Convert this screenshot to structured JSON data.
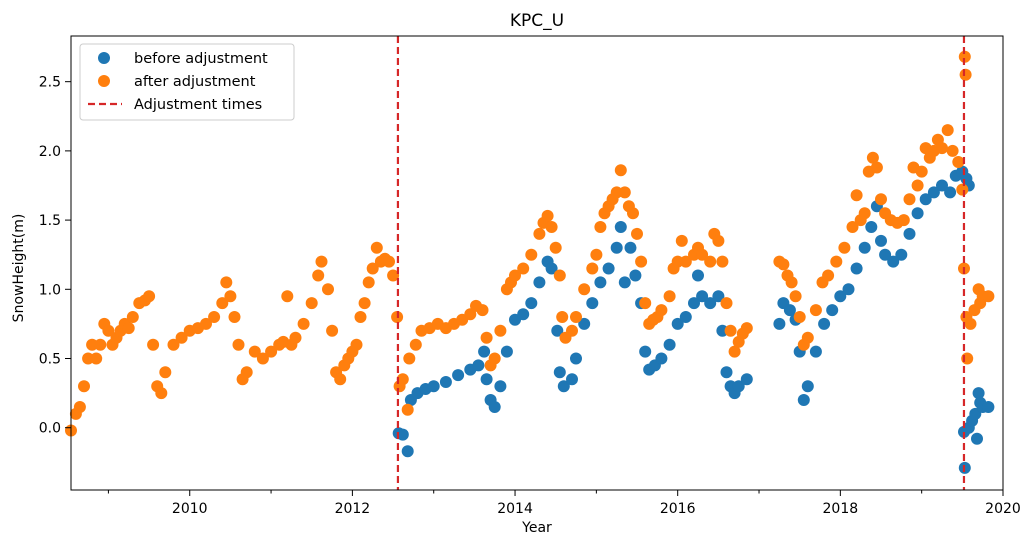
{
  "chart_data": {
    "type": "scatter",
    "title": "KPC_U",
    "xlabel": "Year",
    "ylabel": "SnowHeight(m)",
    "xlim": [
      2008.54,
      2020.0
    ],
    "ylim": [
      -0.45,
      2.83
    ],
    "x_ticks": [
      2010,
      2012,
      2014,
      2016,
      2018,
      2020
    ],
    "x_minor_ticks": [
      2009,
      2011,
      2013,
      2015,
      2017,
      2019
    ],
    "y_ticks": [
      0.0,
      0.5,
      1.0,
      1.5,
      2.0,
      2.5
    ],
    "y_tick_labels": [
      "0.0",
      "0.5",
      "1.0",
      "1.5",
      "2.0",
      "2.5"
    ],
    "legend_position": "upper-left",
    "colors": {
      "before": "#1f77b4",
      "after": "#ff7f0e",
      "adjust": "#d62728"
    },
    "series": [
      {
        "name": "before adjustment",
        "marker": "circle",
        "points": [
          [
            2012.57,
            -0.04
          ],
          [
            2012.62,
            -0.05
          ],
          [
            2012.68,
            -0.17
          ],
          [
            2012.72,
            0.2
          ],
          [
            2012.8,
            0.25
          ],
          [
            2012.9,
            0.28
          ],
          [
            2013.0,
            0.3
          ],
          [
            2013.15,
            0.33
          ],
          [
            2013.3,
            0.38
          ],
          [
            2013.45,
            0.42
          ],
          [
            2013.55,
            0.45
          ],
          [
            2013.62,
            0.55
          ],
          [
            2013.65,
            0.35
          ],
          [
            2013.7,
            0.2
          ],
          [
            2013.75,
            0.15
          ],
          [
            2013.82,
            0.3
          ],
          [
            2013.9,
            0.55
          ],
          [
            2014.0,
            0.78
          ],
          [
            2014.1,
            0.82
          ],
          [
            2014.2,
            0.9
          ],
          [
            2014.3,
            1.05
          ],
          [
            2014.4,
            1.2
          ],
          [
            2014.45,
            1.15
          ],
          [
            2014.52,
            0.7
          ],
          [
            2014.55,
            0.4
          ],
          [
            2014.6,
            0.3
          ],
          [
            2014.7,
            0.35
          ],
          [
            2014.75,
            0.5
          ],
          [
            2014.85,
            0.75
          ],
          [
            2014.95,
            0.9
          ],
          [
            2015.05,
            1.05
          ],
          [
            2015.15,
            1.15
          ],
          [
            2015.25,
            1.3
          ],
          [
            2015.3,
            1.45
          ],
          [
            2015.35,
            1.05
          ],
          [
            2015.42,
            1.3
          ],
          [
            2015.48,
            1.1
          ],
          [
            2015.55,
            0.9
          ],
          [
            2015.6,
            0.55
          ],
          [
            2015.65,
            0.42
          ],
          [
            2015.72,
            0.45
          ],
          [
            2015.8,
            0.5
          ],
          [
            2015.9,
            0.6
          ],
          [
            2016.0,
            0.75
          ],
          [
            2016.1,
            0.8
          ],
          [
            2016.2,
            0.9
          ],
          [
            2016.25,
            1.1
          ],
          [
            2016.3,
            0.95
          ],
          [
            2016.4,
            0.9
          ],
          [
            2016.5,
            0.95
          ],
          [
            2016.55,
            0.7
          ],
          [
            2016.6,
            0.4
          ],
          [
            2016.65,
            0.3
          ],
          [
            2016.7,
            0.25
          ],
          [
            2016.75,
            0.3
          ],
          [
            2016.85,
            0.35
          ],
          [
            2017.25,
            0.75
          ],
          [
            2017.3,
            0.9
          ],
          [
            2017.38,
            0.85
          ],
          [
            2017.45,
            0.78
          ],
          [
            2017.5,
            0.55
          ],
          [
            2017.55,
            0.2
          ],
          [
            2017.6,
            0.3
          ],
          [
            2017.7,
            0.55
          ],
          [
            2017.8,
            0.75
          ],
          [
            2017.9,
            0.85
          ],
          [
            2018.0,
            0.95
          ],
          [
            2018.1,
            1.0
          ],
          [
            2018.2,
            1.15
          ],
          [
            2018.3,
            1.3
          ],
          [
            2018.38,
            1.45
          ],
          [
            2018.45,
            1.6
          ],
          [
            2018.5,
            1.35
          ],
          [
            2018.55,
            1.25
          ],
          [
            2018.65,
            1.2
          ],
          [
            2018.75,
            1.25
          ],
          [
            2018.85,
            1.4
          ],
          [
            2018.95,
            1.55
          ],
          [
            2019.05,
            1.65
          ],
          [
            2019.15,
            1.7
          ],
          [
            2019.25,
            1.75
          ],
          [
            2019.35,
            1.7
          ],
          [
            2019.42,
            1.82
          ],
          [
            2019.5,
            1.85
          ],
          [
            2019.55,
            1.8
          ],
          [
            2019.58,
            1.75
          ],
          [
            2019.52,
            -0.03
          ],
          [
            2019.53,
            -0.29
          ],
          [
            2019.58,
            0.0
          ],
          [
            2019.62,
            0.05
          ],
          [
            2019.66,
            0.1
          ],
          [
            2019.68,
            -0.08
          ],
          [
            2019.7,
            0.25
          ],
          [
            2019.72,
            0.18
          ],
          [
            2019.75,
            0.15
          ],
          [
            2019.82,
            0.15
          ]
        ]
      },
      {
        "name": "after adjustment",
        "marker": "circle",
        "points": [
          [
            2008.54,
            -0.02
          ],
          [
            2008.6,
            0.1
          ],
          [
            2008.65,
            0.15
          ],
          [
            2008.7,
            0.3
          ],
          [
            2008.75,
            0.5
          ],
          [
            2008.8,
            0.6
          ],
          [
            2008.85,
            0.5
          ],
          [
            2008.9,
            0.6
          ],
          [
            2008.95,
            0.75
          ],
          [
            2009.0,
            0.7
          ],
          [
            2009.05,
            0.6
          ],
          [
            2009.1,
            0.65
          ],
          [
            2009.15,
            0.7
          ],
          [
            2009.2,
            0.75
          ],
          [
            2009.25,
            0.72
          ],
          [
            2009.3,
            0.8
          ],
          [
            2009.38,
            0.9
          ],
          [
            2009.45,
            0.92
          ],
          [
            2009.5,
            0.95
          ],
          [
            2009.55,
            0.6
          ],
          [
            2009.6,
            0.3
          ],
          [
            2009.65,
            0.25
          ],
          [
            2009.7,
            0.4
          ],
          [
            2009.8,
            0.6
          ],
          [
            2009.9,
            0.65
          ],
          [
            2010.0,
            0.7
          ],
          [
            2010.1,
            0.72
          ],
          [
            2010.2,
            0.75
          ],
          [
            2010.3,
            0.8
          ],
          [
            2010.4,
            0.9
          ],
          [
            2010.45,
            1.05
          ],
          [
            2010.5,
            0.95
          ],
          [
            2010.55,
            0.8
          ],
          [
            2010.6,
            0.6
          ],
          [
            2010.65,
            0.35
          ],
          [
            2010.7,
            0.4
          ],
          [
            2010.8,
            0.55
          ],
          [
            2010.9,
            0.5
          ],
          [
            2011.0,
            0.55
          ],
          [
            2011.1,
            0.6
          ],
          [
            2011.15,
            0.62
          ],
          [
            2011.2,
            0.95
          ],
          [
            2011.25,
            0.6
          ],
          [
            2011.3,
            0.65
          ],
          [
            2011.4,
            0.75
          ],
          [
            2011.5,
            0.9
          ],
          [
            2011.58,
            1.1
          ],
          [
            2011.62,
            1.2
          ],
          [
            2011.7,
            1.0
          ],
          [
            2011.75,
            0.7
          ],
          [
            2011.8,
            0.4
          ],
          [
            2011.85,
            0.35
          ],
          [
            2011.9,
            0.45
          ],
          [
            2011.95,
            0.5
          ],
          [
            2012.0,
            0.55
          ],
          [
            2012.05,
            0.6
          ],
          [
            2012.1,
            0.8
          ],
          [
            2012.15,
            0.9
          ],
          [
            2012.2,
            1.05
          ],
          [
            2012.25,
            1.15
          ],
          [
            2012.3,
            1.3
          ],
          [
            2012.35,
            1.2
          ],
          [
            2012.4,
            1.22
          ],
          [
            2012.45,
            1.2
          ],
          [
            2012.5,
            1.1
          ],
          [
            2012.55,
            0.8
          ],
          [
            2012.58,
            0.3
          ],
          [
            2012.62,
            0.35
          ],
          [
            2012.68,
            0.13
          ],
          [
            2012.7,
            0.5
          ],
          [
            2012.78,
            0.6
          ],
          [
            2012.85,
            0.7
          ],
          [
            2012.95,
            0.72
          ],
          [
            2013.05,
            0.75
          ],
          [
            2013.15,
            0.72
          ],
          [
            2013.25,
            0.75
          ],
          [
            2013.35,
            0.78
          ],
          [
            2013.45,
            0.82
          ],
          [
            2013.52,
            0.88
          ],
          [
            2013.6,
            0.85
          ],
          [
            2013.65,
            0.65
          ],
          [
            2013.7,
            0.45
          ],
          [
            2013.75,
            0.5
          ],
          [
            2013.82,
            0.7
          ],
          [
            2013.9,
            1.0
          ],
          [
            2013.95,
            1.05
          ],
          [
            2014.0,
            1.1
          ],
          [
            2014.1,
            1.15
          ],
          [
            2014.2,
            1.25
          ],
          [
            2014.3,
            1.4
          ],
          [
            2014.35,
            1.48
          ],
          [
            2014.4,
            1.53
          ],
          [
            2014.45,
            1.45
          ],
          [
            2014.5,
            1.3
          ],
          [
            2014.55,
            1.1
          ],
          [
            2014.58,
            0.8
          ],
          [
            2014.62,
            0.65
          ],
          [
            2014.7,
            0.7
          ],
          [
            2014.75,
            0.8
          ],
          [
            2014.85,
            1.0
          ],
          [
            2014.95,
            1.15
          ],
          [
            2015.0,
            1.25
          ],
          [
            2015.05,
            1.45
          ],
          [
            2015.1,
            1.55
          ],
          [
            2015.15,
            1.6
          ],
          [
            2015.2,
            1.65
          ],
          [
            2015.25,
            1.7
          ],
          [
            2015.3,
            1.86
          ],
          [
            2015.35,
            1.7
          ],
          [
            2015.4,
            1.6
          ],
          [
            2015.45,
            1.55
          ],
          [
            2015.5,
            1.4
          ],
          [
            2015.55,
            1.2
          ],
          [
            2015.6,
            0.9
          ],
          [
            2015.65,
            0.75
          ],
          [
            2015.7,
            0.78
          ],
          [
            2015.75,
            0.8
          ],
          [
            2015.8,
            0.85
          ],
          [
            2015.9,
            0.95
          ],
          [
            2015.95,
            1.15
          ],
          [
            2016.0,
            1.2
          ],
          [
            2016.05,
            1.35
          ],
          [
            2016.1,
            1.2
          ],
          [
            2016.2,
            1.25
          ],
          [
            2016.25,
            1.3
          ],
          [
            2016.3,
            1.25
          ],
          [
            2016.4,
            1.2
          ],
          [
            2016.45,
            1.4
          ],
          [
            2016.5,
            1.35
          ],
          [
            2016.55,
            1.2
          ],
          [
            2016.6,
            0.9
          ],
          [
            2016.65,
            0.7
          ],
          [
            2016.7,
            0.55
          ],
          [
            2016.75,
            0.62
          ],
          [
            2016.8,
            0.68
          ],
          [
            2016.85,
            0.72
          ],
          [
            2017.25,
            1.2
          ],
          [
            2017.3,
            1.18
          ],
          [
            2017.35,
            1.1
          ],
          [
            2017.4,
            1.05
          ],
          [
            2017.45,
            0.95
          ],
          [
            2017.5,
            0.8
          ],
          [
            2017.55,
            0.6
          ],
          [
            2017.6,
            0.65
          ],
          [
            2017.7,
            0.85
          ],
          [
            2017.78,
            1.05
          ],
          [
            2017.85,
            1.1
          ],
          [
            2017.95,
            1.2
          ],
          [
            2018.05,
            1.3
          ],
          [
            2018.15,
            1.45
          ],
          [
            2018.2,
            1.68
          ],
          [
            2018.25,
            1.5
          ],
          [
            2018.3,
            1.55
          ],
          [
            2018.35,
            1.85
          ],
          [
            2018.4,
            1.95
          ],
          [
            2018.45,
            1.88
          ],
          [
            2018.5,
            1.65
          ],
          [
            2018.55,
            1.55
          ],
          [
            2018.62,
            1.5
          ],
          [
            2018.7,
            1.48
          ],
          [
            2018.78,
            1.5
          ],
          [
            2018.85,
            1.65
          ],
          [
            2018.9,
            1.88
          ],
          [
            2018.95,
            1.75
          ],
          [
            2019.0,
            1.85
          ],
          [
            2019.05,
            2.02
          ],
          [
            2019.1,
            1.95
          ],
          [
            2019.15,
            2.0
          ],
          [
            2019.2,
            2.08
          ],
          [
            2019.25,
            2.02
          ],
          [
            2019.32,
            2.15
          ],
          [
            2019.38,
            2.0
          ],
          [
            2019.45,
            1.92
          ],
          [
            2019.5,
            1.72
          ],
          [
            2019.52,
            1.15
          ],
          [
            2019.53,
            2.68
          ],
          [
            2019.54,
            2.55
          ],
          [
            2019.55,
            0.8
          ],
          [
            2019.56,
            0.5
          ],
          [
            2019.6,
            0.75
          ],
          [
            2019.65,
            0.85
          ],
          [
            2019.7,
            1.0
          ],
          [
            2019.72,
            0.9
          ],
          [
            2019.75,
            0.95
          ],
          [
            2019.82,
            0.95
          ]
        ]
      },
      {
        "name": "Adjustment times",
        "line_style": "dashed",
        "x": [
          2012.56,
          2019.52
        ]
      }
    ]
  }
}
